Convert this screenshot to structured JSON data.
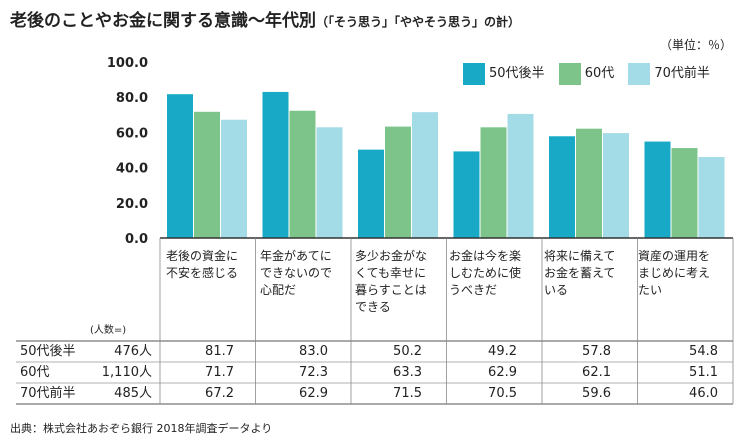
{
  "title": "老後のことやお金に関する意識〜年代別",
  "subtitle": "（「そう思う」「ややそう思う」の計）",
  "unit": "（単位：％）",
  "source": "出典：株式会社あおぞら銀行 2018年調査データより",
  "respondents_label": "(人数=)",
  "colors": {
    "s50": "#17a9c6",
    "s60": "#7cc48a",
    "s70": "#a3dbe6"
  },
  "chart_data": {
    "type": "bar",
    "ylim": [
      0,
      100
    ],
    "yticks": [
      "0.0",
      "20.0",
      "40.0",
      "60.0",
      "80.0",
      "100.0"
    ],
    "categories": [
      "老後の資金に不安を感じる",
      "年金があてにできないので心配だ",
      "多少お金がなくても幸せに暮らすことはできる",
      "お金は今を楽しむために使うべきだ",
      "将来に備えてお金を蓄えている",
      "資産の運用をまじめに考えたい"
    ],
    "series": [
      {
        "name": "50代後半",
        "n": "476人",
        "values": [
          81.7,
          83.0,
          50.2,
          49.2,
          57.8,
          54.8
        ],
        "labels": [
          "81.7",
          "83.0",
          "50.2",
          "49.2",
          "57.8",
          "54.8"
        ]
      },
      {
        "name": "60代",
        "n": "1,110人",
        "values": [
          71.7,
          72.3,
          63.3,
          62.9,
          62.1,
          51.1
        ],
        "labels": [
          "71.7",
          "72.3",
          "63.3",
          "62.9",
          "62.1",
          "51.1"
        ]
      },
      {
        "name": "70代前半",
        "n": "485人",
        "values": [
          67.2,
          62.9,
          71.5,
          70.5,
          59.6,
          46.0
        ],
        "labels": [
          "67.2",
          "62.9",
          "71.5",
          "70.5",
          "59.6",
          "46.0"
        ]
      }
    ],
    "legend": "top-right"
  }
}
